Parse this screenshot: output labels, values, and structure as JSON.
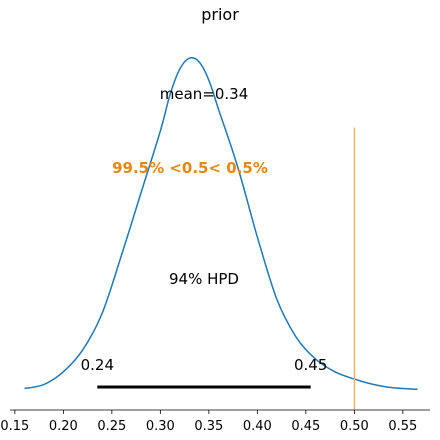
{
  "chart_data": {
    "type": "area",
    "title": "prior",
    "xlabel": "",
    "ylabel": "",
    "xlim": [
      0.145,
      0.578
    ],
    "ylim": [
      0.0,
      9.6
    ],
    "grid": false,
    "x_ticks": [
      0.15,
      0.2,
      0.25,
      0.3,
      0.35,
      0.4,
      0.45,
      0.5,
      0.55
    ],
    "x_tick_labels": [
      "0.15",
      "0.20",
      "0.25",
      "0.30",
      "0.35",
      "0.40",
      "0.45",
      "0.50",
      "0.55"
    ],
    "series": [
      {
        "name": "",
        "color": "#1f77b4",
        "points": [
          [
            0.16,
            0.04
          ],
          [
            0.18,
            0.15
          ],
          [
            0.2,
            0.5
          ],
          [
            0.22,
            1.1
          ],
          [
            0.24,
            2.1
          ],
          [
            0.26,
            3.7
          ],
          [
            0.28,
            5.4
          ],
          [
            0.3,
            7.1
          ],
          [
            0.31,
            8.1
          ],
          [
            0.32,
            8.8
          ],
          [
            0.33,
            9.1
          ],
          [
            0.34,
            9.0
          ],
          [
            0.35,
            8.5
          ],
          [
            0.36,
            7.7
          ],
          [
            0.38,
            6.1
          ],
          [
            0.4,
            4.2
          ],
          [
            0.42,
            2.5
          ],
          [
            0.44,
            1.45
          ],
          [
            0.46,
            0.85
          ],
          [
            0.48,
            0.5
          ],
          [
            0.5,
            0.3
          ],
          [
            0.52,
            0.15
          ],
          [
            0.54,
            0.06
          ],
          [
            0.565,
            0.02
          ]
        ]
      }
    ],
    "reference_line": {
      "x": 0.5,
      "color": "#ffb366",
      "y_top": 7.2
    },
    "mean_label": "mean=0.34",
    "reference_label": "99.5% <0.5< 0.5%",
    "reference_label_color": "#e8870e",
    "hpd": {
      "label": "94% HPD",
      "low": 0.235,
      "high": 0.455,
      "low_label": "0.24",
      "high_label": "0.45"
    }
  }
}
